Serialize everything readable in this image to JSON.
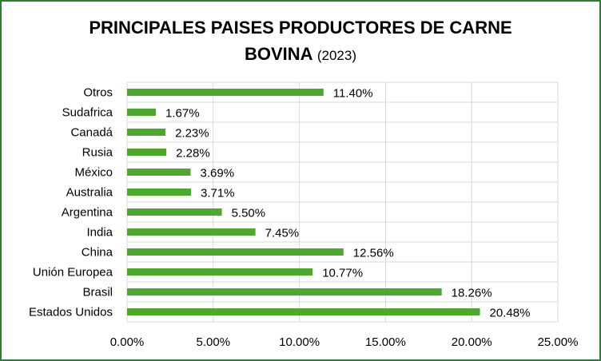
{
  "chart_data": {
    "type": "bar",
    "orientation": "horizontal",
    "title": "PRINCIPALES PAISES PRODUCTORES DE CARNE",
    "title_line2": "BOVINA",
    "subtitle": "(2023)",
    "categories": [
      "Otros",
      "Sudafrica",
      "Canadá",
      "Rusia",
      "México",
      "Australia",
      "Argentina",
      "India",
      "China",
      "Unión Europea",
      "Brasil",
      "Estados Unidos"
    ],
    "values": [
      11.4,
      1.67,
      2.23,
      2.28,
      3.69,
      3.71,
      5.5,
      7.45,
      12.56,
      10.77,
      18.26,
      20.48
    ],
    "data_labels": [
      "11.40%",
      "1.67%",
      "2.23%",
      "2.28%",
      "3.69%",
      "3.71%",
      "5.50%",
      "7.45%",
      "12.56%",
      "10.77%",
      "18.26%",
      "20.48%"
    ],
    "xlim": [
      0,
      25
    ],
    "x_ticks": [
      "0.00%",
      "5.00%",
      "10.00%",
      "15.00%",
      "20.00%",
      "25.00%"
    ],
    "grid": true,
    "legend": "none",
    "bar_color": "#4ea72e",
    "grid_color": "#d9d9d9",
    "border_color": "#2f7d32"
  }
}
